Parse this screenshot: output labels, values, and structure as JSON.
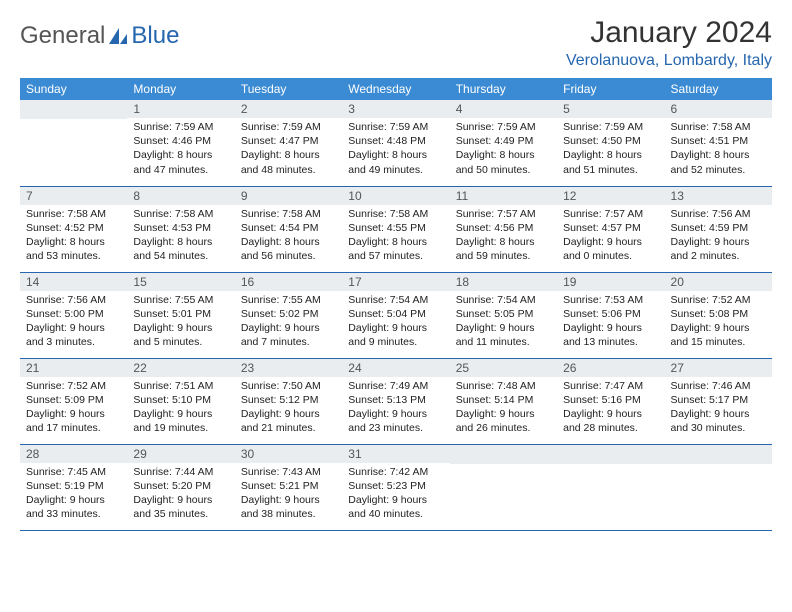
{
  "logo": {
    "part1": "General",
    "part2": "Blue"
  },
  "title": "January 2024",
  "location": "Verolanuova, Lombardy, Italy",
  "colors": {
    "header_bg": "#3b8bd4",
    "daynum_bg": "#e9edf0",
    "accent": "#2566af",
    "text": "#222222"
  },
  "weekdays": [
    "Sunday",
    "Monday",
    "Tuesday",
    "Wednesday",
    "Thursday",
    "Friday",
    "Saturday"
  ],
  "weeks": [
    [
      null,
      {
        "n": "1",
        "sr": "Sunrise: 7:59 AM",
        "ss": "Sunset: 4:46 PM",
        "d1": "Daylight: 8 hours",
        "d2": "and 47 minutes."
      },
      {
        "n": "2",
        "sr": "Sunrise: 7:59 AM",
        "ss": "Sunset: 4:47 PM",
        "d1": "Daylight: 8 hours",
        "d2": "and 48 minutes."
      },
      {
        "n": "3",
        "sr": "Sunrise: 7:59 AM",
        "ss": "Sunset: 4:48 PM",
        "d1": "Daylight: 8 hours",
        "d2": "and 49 minutes."
      },
      {
        "n": "4",
        "sr": "Sunrise: 7:59 AM",
        "ss": "Sunset: 4:49 PM",
        "d1": "Daylight: 8 hours",
        "d2": "and 50 minutes."
      },
      {
        "n": "5",
        "sr": "Sunrise: 7:59 AM",
        "ss": "Sunset: 4:50 PM",
        "d1": "Daylight: 8 hours",
        "d2": "and 51 minutes."
      },
      {
        "n": "6",
        "sr": "Sunrise: 7:58 AM",
        "ss": "Sunset: 4:51 PM",
        "d1": "Daylight: 8 hours",
        "d2": "and 52 minutes."
      }
    ],
    [
      {
        "n": "7",
        "sr": "Sunrise: 7:58 AM",
        "ss": "Sunset: 4:52 PM",
        "d1": "Daylight: 8 hours",
        "d2": "and 53 minutes."
      },
      {
        "n": "8",
        "sr": "Sunrise: 7:58 AM",
        "ss": "Sunset: 4:53 PM",
        "d1": "Daylight: 8 hours",
        "d2": "and 54 minutes."
      },
      {
        "n": "9",
        "sr": "Sunrise: 7:58 AM",
        "ss": "Sunset: 4:54 PM",
        "d1": "Daylight: 8 hours",
        "d2": "and 56 minutes."
      },
      {
        "n": "10",
        "sr": "Sunrise: 7:58 AM",
        "ss": "Sunset: 4:55 PM",
        "d1": "Daylight: 8 hours",
        "d2": "and 57 minutes."
      },
      {
        "n": "11",
        "sr": "Sunrise: 7:57 AM",
        "ss": "Sunset: 4:56 PM",
        "d1": "Daylight: 8 hours",
        "d2": "and 59 minutes."
      },
      {
        "n": "12",
        "sr": "Sunrise: 7:57 AM",
        "ss": "Sunset: 4:57 PM",
        "d1": "Daylight: 9 hours",
        "d2": "and 0 minutes."
      },
      {
        "n": "13",
        "sr": "Sunrise: 7:56 AM",
        "ss": "Sunset: 4:59 PM",
        "d1": "Daylight: 9 hours",
        "d2": "and 2 minutes."
      }
    ],
    [
      {
        "n": "14",
        "sr": "Sunrise: 7:56 AM",
        "ss": "Sunset: 5:00 PM",
        "d1": "Daylight: 9 hours",
        "d2": "and 3 minutes."
      },
      {
        "n": "15",
        "sr": "Sunrise: 7:55 AM",
        "ss": "Sunset: 5:01 PM",
        "d1": "Daylight: 9 hours",
        "d2": "and 5 minutes."
      },
      {
        "n": "16",
        "sr": "Sunrise: 7:55 AM",
        "ss": "Sunset: 5:02 PM",
        "d1": "Daylight: 9 hours",
        "d2": "and 7 minutes."
      },
      {
        "n": "17",
        "sr": "Sunrise: 7:54 AM",
        "ss": "Sunset: 5:04 PM",
        "d1": "Daylight: 9 hours",
        "d2": "and 9 minutes."
      },
      {
        "n": "18",
        "sr": "Sunrise: 7:54 AM",
        "ss": "Sunset: 5:05 PM",
        "d1": "Daylight: 9 hours",
        "d2": "and 11 minutes."
      },
      {
        "n": "19",
        "sr": "Sunrise: 7:53 AM",
        "ss": "Sunset: 5:06 PM",
        "d1": "Daylight: 9 hours",
        "d2": "and 13 minutes."
      },
      {
        "n": "20",
        "sr": "Sunrise: 7:52 AM",
        "ss": "Sunset: 5:08 PM",
        "d1": "Daylight: 9 hours",
        "d2": "and 15 minutes."
      }
    ],
    [
      {
        "n": "21",
        "sr": "Sunrise: 7:52 AM",
        "ss": "Sunset: 5:09 PM",
        "d1": "Daylight: 9 hours",
        "d2": "and 17 minutes."
      },
      {
        "n": "22",
        "sr": "Sunrise: 7:51 AM",
        "ss": "Sunset: 5:10 PM",
        "d1": "Daylight: 9 hours",
        "d2": "and 19 minutes."
      },
      {
        "n": "23",
        "sr": "Sunrise: 7:50 AM",
        "ss": "Sunset: 5:12 PM",
        "d1": "Daylight: 9 hours",
        "d2": "and 21 minutes."
      },
      {
        "n": "24",
        "sr": "Sunrise: 7:49 AM",
        "ss": "Sunset: 5:13 PM",
        "d1": "Daylight: 9 hours",
        "d2": "and 23 minutes."
      },
      {
        "n": "25",
        "sr": "Sunrise: 7:48 AM",
        "ss": "Sunset: 5:14 PM",
        "d1": "Daylight: 9 hours",
        "d2": "and 26 minutes."
      },
      {
        "n": "26",
        "sr": "Sunrise: 7:47 AM",
        "ss": "Sunset: 5:16 PM",
        "d1": "Daylight: 9 hours",
        "d2": "and 28 minutes."
      },
      {
        "n": "27",
        "sr": "Sunrise: 7:46 AM",
        "ss": "Sunset: 5:17 PM",
        "d1": "Daylight: 9 hours",
        "d2": "and 30 minutes."
      }
    ],
    [
      {
        "n": "28",
        "sr": "Sunrise: 7:45 AM",
        "ss": "Sunset: 5:19 PM",
        "d1": "Daylight: 9 hours",
        "d2": "and 33 minutes."
      },
      {
        "n": "29",
        "sr": "Sunrise: 7:44 AM",
        "ss": "Sunset: 5:20 PM",
        "d1": "Daylight: 9 hours",
        "d2": "and 35 minutes."
      },
      {
        "n": "30",
        "sr": "Sunrise: 7:43 AM",
        "ss": "Sunset: 5:21 PM",
        "d1": "Daylight: 9 hours",
        "d2": "and 38 minutes."
      },
      {
        "n": "31",
        "sr": "Sunrise: 7:42 AM",
        "ss": "Sunset: 5:23 PM",
        "d1": "Daylight: 9 hours",
        "d2": "and 40 minutes."
      },
      null,
      null,
      null
    ]
  ]
}
